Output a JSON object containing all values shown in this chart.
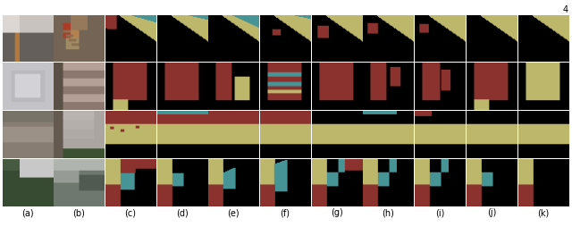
{
  "nrows": 4,
  "ncols": 11,
  "labels": [
    "(a)",
    "(b)",
    "(c)",
    "(d)",
    "(e)",
    "(f)",
    "(g)",
    "(h)",
    "(i)",
    "(j)",
    "(k)"
  ],
  "label_fontsize": 7,
  "figure_number": "4",
  "bg_color": "#ffffff",
  "colors": {
    "BLACK": [
      0,
      0,
      0
    ],
    "KHAKI": [
      189,
      183,
      107
    ],
    "TEAL": [
      70,
      148,
      150
    ],
    "DRED": [
      139,
      50,
      46
    ]
  }
}
